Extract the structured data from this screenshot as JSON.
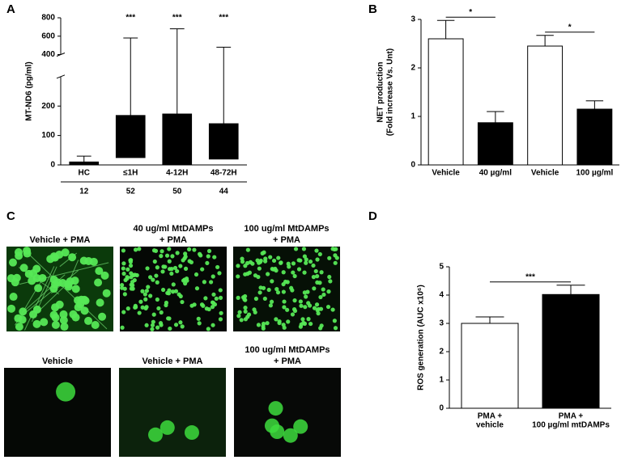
{
  "chart_data": [
    {
      "type": "box",
      "panel_label": "A",
      "ylabel": [
        "MT-ND6 (pg/ml)"
      ],
      "categories": [
        "HC",
        "≤1H",
        "4-12H",
        "48-72H"
      ],
      "sample_sizes": [
        12,
        52,
        50,
        44
      ],
      "q1": [
        0,
        25,
        0,
        20
      ],
      "q3": [
        10,
        168,
        173,
        140
      ],
      "max": [
        30,
        580,
        680,
        480
      ],
      "annotations": [
        null,
        "***",
        "***",
        "***"
      ],
      "color": "#000000",
      "ylim": [
        0,
        800
      ],
      "ybreak": [
        300,
        400
      ],
      "yticks": [
        0,
        100,
        200,
        400,
        600,
        800
      ]
    },
    {
      "type": "bar",
      "panel_label": "B",
      "ylabel": [
        "NET production",
        "(Fold increase Vs. Unt)"
      ],
      "categories": [
        [
          "Vehicle"
        ],
        [
          "40 µg/ml"
        ],
        [
          "Vehicle"
        ],
        [
          "100 µg/ml"
        ]
      ],
      "values": [
        2.6,
        0.87,
        2.45,
        1.15
      ],
      "errors": [
        0.38,
        0.23,
        0.22,
        0.17
      ],
      "colors": [
        "#ffffff",
        "#000000",
        "#ffffff",
        "#000000"
      ],
      "significance": [
        "*",
        "*"
      ],
      "ylim": [
        0,
        3
      ],
      "yticks": [
        0,
        1,
        2,
        3
      ]
    },
    {
      "type": "bar",
      "panel_label": "D",
      "ylabel": [
        "ROS generation (AUC x10⁶)"
      ],
      "categories": [
        [
          "PMA +",
          "vehicle"
        ],
        [
          "PMA +",
          "100 µg/ml mtDAMPs"
        ]
      ],
      "values": [
        3.0,
        4.02
      ],
      "errors": [
        0.23,
        0.33
      ],
      "colors": [
        "#ffffff",
        "#000000"
      ],
      "significance": [
        "***"
      ],
      "ylim": [
        0,
        5
      ],
      "yticks": [
        0,
        1,
        2,
        3,
        4,
        5
      ]
    }
  ],
  "panel_c": {
    "panel_label": "C",
    "images": [
      {
        "label": [
          "Vehicle + PMA"
        ]
      },
      {
        "label": [
          "40 ug/ml MtDAMPs",
          "+ PMA"
        ]
      },
      {
        "label": [
          "100 ug/ml MtDAMPs",
          "+ PMA"
        ]
      },
      {
        "label": [
          "Vehicle"
        ]
      },
      {
        "label": [
          "Vehicle + PMA"
        ]
      },
      {
        "label": [
          "100 ug/ml MtDAMPs",
          "+ PMA"
        ]
      }
    ]
  }
}
